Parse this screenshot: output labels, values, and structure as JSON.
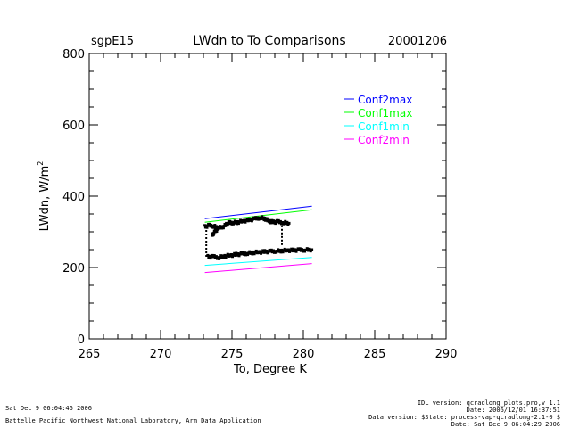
{
  "chart_data": {
    "type": "scatter",
    "site": "sgpE15",
    "title": "LWdn to To Comparisons",
    "date": "20001206",
    "xlabel": "To, Degree K",
    "ylabel_main": "LWdn, W/m",
    "ylabel_sup": "2",
    "xlim": [
      265,
      290
    ],
    "ylim": [
      0,
      800
    ],
    "xticks": [
      265,
      270,
      275,
      280,
      285,
      290
    ],
    "yticks": [
      0,
      200,
      400,
      600,
      800
    ],
    "x_minor_step": 1,
    "y_minor_step": 50,
    "series": [
      {
        "name": "Conf2max",
        "color": "#0000ff",
        "x": [
          273.1,
          280.6
        ],
        "y": [
          337,
          372
        ]
      },
      {
        "name": "Conf1max",
        "color": "#00ff00",
        "x": [
          273.1,
          280.6
        ],
        "y": [
          327,
          362
        ]
      },
      {
        "name": "Conf1min",
        "color": "#00ffff",
        "x": [
          273.1,
          280.6
        ],
        "y": [
          206,
          228
        ]
      },
      {
        "name": "Conf2min",
        "color": "#ff00ff",
        "x": [
          273.1,
          280.6
        ],
        "y": [
          186,
          211
        ]
      }
    ],
    "observations": {
      "name": "measured",
      "color": "#000000",
      "upper_branch": {
        "x": [
          273.1,
          273.4,
          273.7,
          274.0,
          274.3,
          274.6,
          274.8,
          275.1,
          275.4,
          275.8,
          276.2,
          276.6,
          277.0,
          277.3,
          277.6,
          277.9,
          278.2,
          278.6,
          279.0
        ],
        "y": [
          314,
          318,
          316,
          312,
          312,
          320,
          325,
          326,
          327,
          330,
          333,
          336,
          340,
          337,
          330,
          327,
          328,
          326,
          324
        ]
      },
      "dip": {
        "x": [
          273.6,
          273.8,
          274.0
        ],
        "y": [
          290,
          300,
          308
        ]
      },
      "lower_branch": {
        "x": [
          273.3,
          273.7,
          274.1,
          274.5,
          274.9,
          275.3,
          275.7,
          276.1,
          276.5,
          276.9,
          277.3,
          277.7,
          278.1,
          278.5,
          278.9,
          279.3,
          279.7,
          280.1,
          280.6
        ],
        "y": [
          230,
          230,
          228,
          232,
          234,
          236,
          238,
          240,
          242,
          243,
          244,
          245,
          246,
          247,
          248,
          248,
          249,
          249,
          250
        ]
      },
      "vertical_drops": [
        {
          "x": 273.2,
          "y": [
            232,
            315
          ]
        },
        {
          "x": 278.5,
          "y": [
            262,
            318
          ]
        }
      ]
    }
  },
  "footer": {
    "timestamp": "Sat Dec  9 06:04:46 2006",
    "lab": "Battelle Pacific Northwest National Laboratory, Arm Data Application",
    "idl_version": "IDL version: qcradlong_plots.pro,v 1.1",
    "file_date": "Date: 2006/12/01 16:37:51",
    "data_version": "Data version: $State: process-vap-qcradlong-2.1-0 $",
    "run_date": "Date: Sat Dec  9 06:04:29 2006"
  }
}
